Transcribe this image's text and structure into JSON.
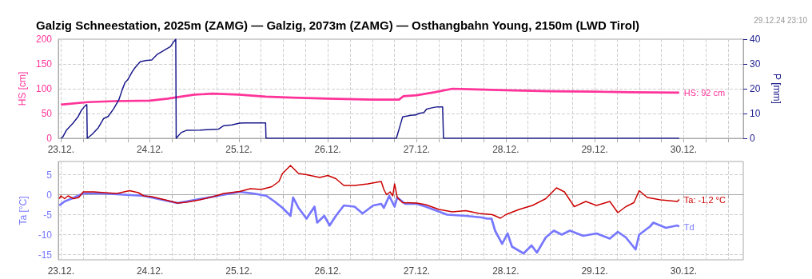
{
  "chart_data": [
    {
      "type": "line",
      "title": "Galzig Schneestation, 2025m (ZAMG) — Galzig, 2073m (ZAMG) — Osthangbahn Young, 2150m (LWD Tirol)",
      "annotations": [
        "29.12.24 23:10"
      ],
      "ylabel": "HS [cm]",
      "y2label": "P [mm]",
      "xlim": [
        "--12-22T23:17",
        "--12-30T16:05"
      ],
      "xticks": [
        {
          "value": "--12-23",
          "label": "23.12."
        },
        {
          "value": "--12-23T06:00",
          "label": null
        },
        {
          "value": "--12-23T12:00",
          "label": null
        },
        {
          "value": "--12-23T18:00",
          "label": null
        },
        {
          "value": "--12-24",
          "label": "24.12."
        },
        {
          "value": "--12-24T06:00",
          "label": null
        },
        {
          "value": "--12-24T12:00",
          "label": null
        },
        {
          "value": "--12-24T18:00",
          "label": null
        },
        {
          "value": "--12-25",
          "label": "25.12."
        },
        {
          "value": "--12-25T06:00",
          "label": null
        },
        {
          "value": "--12-25T12:00",
          "label": null
        },
        {
          "value": "--12-25T18:00",
          "label": null
        },
        {
          "value": "--12-26",
          "label": "26.12."
        },
        {
          "value": "--12-26T06:00",
          "label": null
        },
        {
          "value": "--12-26T12:00",
          "label": null
        },
        {
          "value": "--12-26T18:00",
          "label": null
        },
        {
          "value": "--12-27",
          "label": "27.12."
        },
        {
          "value": "--12-27T06:00",
          "label": null
        },
        {
          "value": "--12-27T12:00",
          "label": null
        },
        {
          "value": "--12-27T18:00",
          "label": null
        },
        {
          "value": "--12-28",
          "label": "28.12."
        },
        {
          "value": "--12-28T06:00",
          "label": null
        },
        {
          "value": "--12-28T12:00",
          "label": null
        },
        {
          "value": "--12-28T18:00",
          "label": null
        },
        {
          "value": "--12-29",
          "label": "29.12."
        },
        {
          "value": "--12-29T06:00",
          "label": null
        },
        {
          "value": "--12-29T12:00",
          "label": null
        },
        {
          "value": "--12-29T18:00",
          "label": null
        },
        {
          "value": "--12-30",
          "label": "30.12."
        },
        {
          "value": "--12-30T06:00",
          "label": null
        },
        {
          "value": "--12-30T12:00",
          "label": null
        }
      ],
      "ylim": [
        0,
        200
      ],
      "yticks": [
        0,
        50,
        100,
        150,
        200
      ],
      "y2lim": [
        0,
        40
      ],
      "y2ticks": [
        0,
        10,
        20,
        30,
        40
      ],
      "grid": true,
      "series": [
        {
          "name": "HS: 92 cm",
          "color": "#ff3399",
          "x": [
            "--12-23T00:00",
            "--12-23T07:12",
            "--12-23T14:24",
            "--12-24T00:00",
            "--12-24T04:48",
            "--12-24T12:00",
            "--12-24T16:48",
            "--12-25T00:00",
            "--12-25T07:12",
            "--12-25T14:24",
            "--12-26T00:00",
            "--12-26T12:00",
            "--12-26T19:12",
            "--12-26T20:24",
            "--12-27T00:00",
            "--12-27T04:48",
            "--12-27T09:36",
            "--12-27T14:24",
            "--12-28T00:00",
            "--12-28T12:00",
            "--12-29T00:00",
            "--12-29T09:36",
            "--12-29T22:48"
          ],
          "values": [
            68,
            73,
            75,
            76,
            80,
            88,
            90,
            88,
            84,
            82,
            80,
            78,
            78,
            85,
            87,
            93,
            100,
            99,
            97,
            95,
            94,
            93,
            92
          ]
        },
        {
          "color": "#1a1a8c",
          "axis": "y2",
          "x": [
            "--12-23T00:00",
            "--12-23T00:29",
            "--12-23T01:26",
            "--12-23T03:07",
            "--12-23T04:34",
            "--12-23T05:31",
            "--12-23T06:29",
            "--12-23T06:58",
            "--12-23T07:05",
            "--12-23T08:24",
            "--12-23T10:05",
            "--12-23T11:31",
            "--12-23T12:43",
            "--12-23T14:10",
            "--12-23T15:36",
            "--12-23T16:34",
            "--12-23T17:17",
            "--12-23T18:00",
            "--12-23T19:12",
            "--12-23T19:55",
            "--12-23T21:22",
            "--12-23T22:48",
            "--12-24T00:29",
            "--12-24T01:55",
            "--12-24T03:07",
            "--12-24T04:34",
            "--12-24T05:31",
            "--12-24T06:14",
            "--12-24T06:58",
            "--12-24T07:05",
            "--12-24T08:24",
            "--12-24T09:50",
            "--12-24T13:26",
            "--12-24T18:29",
            "--12-24T19:55",
            "--12-24T22:05",
            "--12-25T00:14",
            "--12-25T01:41",
            "--12-25T07:12",
            "--12-25T07:19",
            "--12-26T18:29",
            "--12-26T19:26",
            "--12-26T20:10",
            "--12-26T22:19",
            "--12-26T23:46",
            "--12-27T00:29",
            "--12-27T01:55",
            "--12-27T02:38",
            "--12-27T04:05",
            "--12-27T05:31",
            "--12-27T06:58",
            "--12-27T07:12",
            "--12-29T22:48"
          ],
          "values": [
            0,
            0.5,
            3.2,
            5.9,
            8.6,
            11.3,
            13.1,
            13.6,
            0,
            1.6,
            4.3,
            8,
            8.8,
            11.8,
            15.5,
            19.8,
            22.5,
            23.6,
            26.8,
            28.4,
            30.9,
            31.4,
            31.6,
            33.8,
            34.9,
            36.2,
            37,
            38.6,
            40,
            0,
            2.3,
            3.2,
            3.3,
            3.7,
            5.1,
            5.4,
            6.1,
            6.2,
            6.2,
            0,
            0,
            4.8,
            8.6,
            9.3,
            9.4,
            10,
            10.4,
            11.8,
            12.3,
            12.7,
            12.7,
            0,
            0
          ]
        }
      ]
    },
    {
      "type": "line",
      "ylabel": "Ta [°C]",
      "xlim": [
        "--12-22T23:17",
        "--12-30T16:05"
      ],
      "xticks": [
        {
          "value": "--12-23",
          "label": "23.12."
        },
        {
          "value": "--12-23T06:00",
          "label": null
        },
        {
          "value": "--12-23T12:00",
          "label": null
        },
        {
          "value": "--12-23T18:00",
          "label": null
        },
        {
          "value": "--12-24",
          "label": "24.12."
        },
        {
          "value": "--12-24T06:00",
          "label": null
        },
        {
          "value": "--12-24T12:00",
          "label": null
        },
        {
          "value": "--12-24T18:00",
          "label": null
        },
        {
          "value": "--12-25",
          "label": "25.12."
        },
        {
          "value": "--12-25T06:00",
          "label": null
        },
        {
          "value": "--12-25T12:00",
          "label": null
        },
        {
          "value": "--12-25T18:00",
          "label": null
        },
        {
          "value": "--12-26",
          "label": "26.12."
        },
        {
          "value": "--12-26T06:00",
          "label": null
        },
        {
          "value": "--12-26T12:00",
          "label": null
        },
        {
          "value": "--12-26T18:00",
          "label": null
        },
        {
          "value": "--12-27",
          "label": "27.12."
        },
        {
          "value": "--12-27T06:00",
          "label": null
        },
        {
          "value": "--12-27T12:00",
          "label": null
        },
        {
          "value": "--12-27T18:00",
          "label": null
        },
        {
          "value": "--12-28",
          "label": "28.12."
        },
        {
          "value": "--12-28T06:00",
          "label": null
        },
        {
          "value": "--12-28T12:00",
          "label": null
        },
        {
          "value": "--12-28T18:00",
          "label": null
        },
        {
          "value": "--12-29",
          "label": "29.12."
        },
        {
          "value": "--12-29T06:00",
          "label": null
        },
        {
          "value": "--12-29T12:00",
          "label": null
        },
        {
          "value": "--12-29T18:00",
          "label": null
        },
        {
          "value": "--12-30",
          "label": "30.12."
        },
        {
          "value": "--12-30T06:00",
          "label": null
        },
        {
          "value": "--12-30T12:00",
          "label": null
        }
      ],
      "ylim": [
        -16.3,
        8.3
      ],
      "yticks": [
        -15,
        -10,
        -5,
        0,
        5
      ],
      "grid": true,
      "series": [
        {
          "name": "Td",
          "color": "#7777ff",
          "x": [
            "--12-22T23:31",
            "--12-23T00:58",
            "--12-23T03:22",
            "--12-23T06:00",
            "--12-23T11:02",
            "--12-23T15:07",
            "--12-23T22:19",
            "--12-24T07:26",
            "--12-24T17:02",
            "--12-25T00:14",
            "--12-25T03:50",
            "--12-25T07:26",
            "--12-25T09:36",
            "--12-25T11:46",
            "--12-25T13:55",
            "--12-25T14:38",
            "--12-25T16:05",
            "--12-25T18:14",
            "--12-25T20:24",
            "--12-25T21:07",
            "--12-25T23:02",
            "--12-26T00:29",
            "--12-26T02:10",
            "--12-26T04:19",
            "--12-26T07:12",
            "--12-26T09:22",
            "--12-26T12:14",
            "--12-26T14:24",
            "--12-26T15:07",
            "--12-26T16:34",
            "--12-26T18:00",
            "--12-26T18:43",
            "--12-26T20:53",
            "--12-27T00:00",
            "--12-27T02:24",
            "--12-27T08:10",
            "--12-27T13:12",
            "--12-27T17:31",
            "--12-27T18:58",
            "--12-27T20:10",
            "--12-27T21:07",
            "--12-27T23:02",
            "--12-28T00:29",
            "--12-28T01:41",
            "--12-28T04:48",
            "--12-28T06:58",
            "--12-28T08:24",
            "--12-28T10:48",
            "--12-28T12:58",
            "--12-28T15:07",
            "--12-28T17:17",
            "--12-28T20:53",
            "--12-29T00:29",
            "--12-29T04:05",
            "--12-29T06:14",
            "--12-29T08:24",
            "--12-29T11:02",
            "--12-29T12:00",
            "--12-29T14:53",
            "--12-29T15:50",
            "--12-29T19:12",
            "--12-29T22:19",
            "--12-29T22:48"
          ],
          "values": [
            -2.7,
            -1.7,
            -0.8,
            0.3,
            0.3,
            0.1,
            -0.3,
            -2.1,
            -0.5,
            0.7,
            0.3,
            -0.3,
            -1.7,
            -3.3,
            -5.3,
            -0.7,
            -3.3,
            -6,
            -3,
            -7,
            -5.3,
            -7.7,
            -5.3,
            -2.7,
            -3,
            -4.7,
            -2.7,
            -2.3,
            -3.3,
            -0.3,
            -3,
            -0.7,
            -2.3,
            -2.3,
            -3,
            -5,
            -5.3,
            -5.7,
            -6,
            -6,
            -9,
            -12.3,
            -9.7,
            -13,
            -14.7,
            -12.7,
            -14.5,
            -10.7,
            -9,
            -10,
            -9,
            -10.3,
            -9.7,
            -11,
            -9.3,
            -10.7,
            -13.7,
            -10,
            -8,
            -7,
            -8.3,
            -7.7,
            -8
          ]
        },
        {
          "name": "Ta: -1,2 °C",
          "color": "#cc0000",
          "x": [
            "--12-22T23:31",
            "--12-23T00:00",
            "--12-23T00:58",
            "--12-23T01:55",
            "--12-23T03:22",
            "--12-23T04:48",
            "--12-23T06:00",
            "--12-23T08:53",
            "--12-23T11:46",
            "--12-23T15:07",
            "--12-23T18:29",
            "--12-23T20:53",
            "--12-23T22:19",
            "--12-24T00:29",
            "--12-24T04:05",
            "--12-24T07:26",
            "--12-24T09:50",
            "--12-24T13:26",
            "--12-24T17:02",
            "--12-24T19:55",
            "--12-25T00:14",
            "--12-25T03:07",
            "--12-25T06:00",
            "--12-25T08:53",
            "--12-25T10:48",
            "--12-25T11:46",
            "--12-25T13:55",
            "--12-25T16:05",
            "--12-25T18:14",
            "--12-25T21:50",
            "--12-26T00:00",
            "--12-26T02:10",
            "--12-26T04:19",
            "--12-26T07:12",
            "--12-26T10:48",
            "--12-26T14:24",
            "--12-26T15:07",
            "--12-26T15:50",
            "--12-26T16:48",
            "--12-26T17:31",
            "--12-26T18:00",
            "--12-26T18:43",
            "--12-26T20:10",
            "--12-27T00:00",
            "--12-27T02:24",
            "--12-27T06:00",
            "--12-27T09:36",
            "--12-27T13:12",
            "--12-27T16:48",
            "--12-27T20:24",
            "--12-27T22:34",
            "--12-28T00:00",
            "--12-28T03:36",
            "--12-28T07:12",
            "--12-28T10:48",
            "--12-28T13:41",
            "--12-28T15:50",
            "--12-28T18:29",
            "--12-28T21:36",
            "--12-29T00:29",
            "--12-29T04:05",
            "--12-29T06:14",
            "--12-29T08:24",
            "--12-29T10:34",
            "--12-29T12:00",
            "--12-29T14:10",
            "--12-29T17:46",
            "--12-29T22:19",
            "--12-29T22:48"
          ],
          "values": [
            -1,
            -0.3,
            -1,
            -0.3,
            -1,
            -0.7,
            0.7,
            0.7,
            0.5,
            0.3,
            1,
            0.5,
            -0.3,
            -0.5,
            -1.3,
            -2.1,
            -1.9,
            -1.3,
            -0.5,
            0.3,
            0.8,
            1.5,
            1.3,
            2,
            3.3,
            5.3,
            7.3,
            5.3,
            5,
            4.3,
            4.8,
            4,
            2.3,
            2.3,
            2.7,
            3.3,
            1.3,
            0,
            0.7,
            -0.3,
            2.7,
            -0.7,
            -2,
            -2.1,
            -2.5,
            -3.7,
            -4.3,
            -4,
            -4.7,
            -5,
            -5.9,
            -5,
            -3.7,
            -2.7,
            -1,
            1.7,
            0.7,
            -3,
            -1.7,
            -2.7,
            -1.7,
            -4.5,
            -3,
            -2,
            1,
            -0.7,
            -1.3,
            -1.7,
            -1.2
          ]
        }
      ]
    }
  ]
}
